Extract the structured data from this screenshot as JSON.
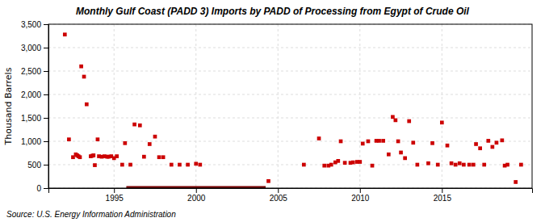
{
  "chart_data": {
    "type": "scatter",
    "title": "Monthly Gulf Coast (PADD 3) Imports by PADD of Processing from Egypt of Crude Oil",
    "ylabel": "Thousand Barrels",
    "source": "Source: U.S. Energy Information Administration",
    "color": "#cc0000",
    "marker": "square",
    "grid": true,
    "xlim": [
      1991.0,
      2020.5
    ],
    "xticks": [
      1995,
      2000,
      2005,
      2010,
      2015
    ],
    "ylim": [
      0,
      3500
    ],
    "yticks": [
      0,
      500,
      {
        "value": 1000,
        "label": "1,000"
      },
      {
        "value": 1500,
        "label": "1,500"
      },
      {
        "value": 2000,
        "label": "2,000"
      },
      {
        "value": 2500,
        "label": "2,500"
      },
      {
        "value": 3000,
        "label": "3,000"
      },
      {
        "value": 3500,
        "label": "3,500"
      }
    ],
    "zero_band": {
      "x": [
        1995.75,
        2004.25
      ],
      "value": 0,
      "color": "#7a0000"
    },
    "x": [
      1992.0,
      1992.25,
      1992.5,
      1992.67,
      1992.75,
      1992.83,
      1992.92,
      1993.0,
      1993.17,
      1993.33,
      1993.58,
      1993.67,
      1993.75,
      1993.83,
      1994.0,
      1994.08,
      1994.25,
      1994.42,
      1994.58,
      1994.67,
      1994.83,
      1995.0,
      1995.17,
      1995.5,
      1995.67,
      1996.0,
      1996.25,
      1996.58,
      1996.83,
      1997.17,
      1997.5,
      1997.75,
      1998.0,
      1998.5,
      1999.0,
      1999.5,
      2000.0,
      2000.25,
      2004.42,
      2006.58,
      2007.5,
      2007.83,
      2008.08,
      2008.25,
      2008.5,
      2008.67,
      2008.83,
      2009.08,
      2009.42,
      2009.58,
      2009.83,
      2010.0,
      2010.17,
      2010.5,
      2010.75,
      2011.0,
      2011.17,
      2011.42,
      2011.75,
      2012.0,
      2012.17,
      2012.33,
      2012.5,
      2012.75,
      2013.0,
      2013.25,
      2013.5,
      2014.17,
      2014.42,
      2014.75,
      2015.0,
      2015.33,
      2015.58,
      2015.83,
      2016.08,
      2016.33,
      2016.67,
      2016.92,
      2017.08,
      2017.33,
      2017.58,
      2017.83,
      2018.08,
      2018.33,
      2018.67,
      2018.83,
      2019.0,
      2019.5,
      2019.83
    ],
    "values": [
      3280,
      1040,
      660,
      720,
      700,
      680,
      660,
      2600,
      2380,
      1790,
      680,
      690,
      700,
      490,
      1040,
      680,
      670,
      680,
      670,
      670,
      680,
      640,
      680,
      500,
      960,
      500,
      1360,
      1340,
      670,
      940,
      1100,
      660,
      660,
      500,
      500,
      500,
      520,
      500,
      150,
      500,
      1060,
      480,
      480,
      500,
      550,
      580,
      1000,
      540,
      540,
      550,
      560,
      560,
      950,
      1000,
      480,
      1010,
      1010,
      1010,
      720,
      1520,
      1450,
      1000,
      760,
      640,
      1430,
      970,
      500,
      530,
      960,
      500,
      1400,
      910,
      530,
      500,
      530,
      500,
      500,
      500,
      940,
      850,
      500,
      1010,
      880,
      970,
      1020,
      480,
      500,
      130,
      500
    ]
  }
}
